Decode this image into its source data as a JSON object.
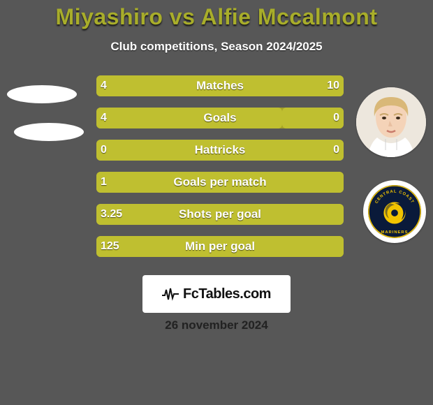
{
  "title": "Miyashiro vs Alfie Mccalmont",
  "title_color": "#a8ad2a",
  "subtitle": "Club competitions, Season 2024/2025",
  "subtitle_color": "#ffffff",
  "background_color": "#575757",
  "date_text": "26 november 2024",
  "date_color": "#222222",
  "site_brand": "FcTables.com",
  "track_color": "#a4a127",
  "fill_color": "#bfbf30",
  "left_avatar_color": "#ffffff",
  "right_player_bg": "#f0ece6",
  "club_logo_bg": "#0a1a3a",
  "club_logo_accent": "#f2c400",
  "club_name_text": "CENTRAL COAST MARINERS",
  "stats": [
    {
      "label": "Matches",
      "left_val": "4",
      "right_val": "10",
      "left_fill_pct": 100,
      "right_fill_pct": 0
    },
    {
      "label": "Goals",
      "left_val": "4",
      "right_val": "0",
      "left_fill_pct": 75,
      "right_fill_pct": 25
    },
    {
      "label": "Hattricks",
      "left_val": "0",
      "right_val": "0",
      "left_fill_pct": 100,
      "right_fill_pct": 0
    },
    {
      "label": "Goals per match",
      "left_val": "1",
      "right_val": "",
      "left_fill_pct": 100,
      "right_fill_pct": 0
    },
    {
      "label": "Shots per goal",
      "left_val": "3.25",
      "right_val": "",
      "left_fill_pct": 100,
      "right_fill_pct": 0
    },
    {
      "label": "Min per goal",
      "left_val": "125",
      "right_val": "",
      "left_fill_pct": 100,
      "right_fill_pct": 0
    }
  ]
}
